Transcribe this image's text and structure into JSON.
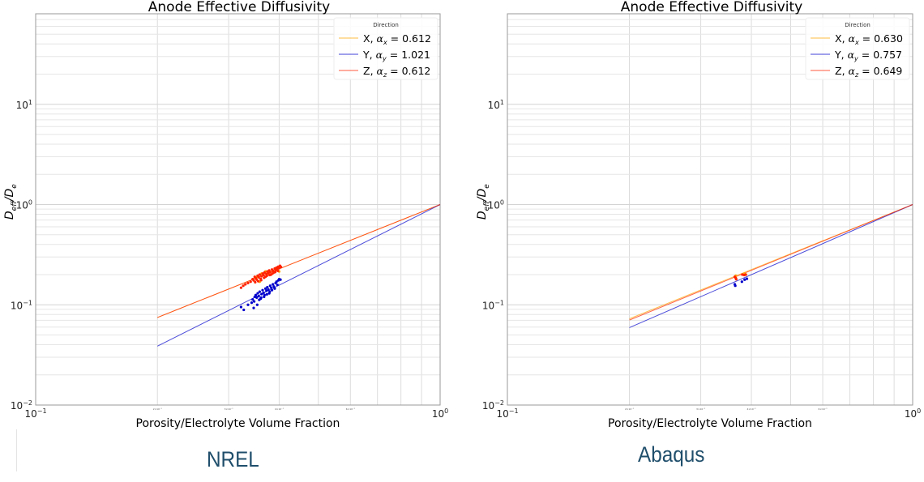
{
  "chart_data": [
    {
      "type": "scatter",
      "title": "Anode Effective Diffusivity",
      "xlabel": "Porosity/Electrolyte Volume Fraction",
      "ylabel": "D_eff/D_e",
      "xscale": "log",
      "yscale": "log",
      "xlim": [
        0.1,
        1.0
      ],
      "ylim": [
        0.01,
        80
      ],
      "grid": true,
      "x_major_ticks": [
        {
          "value": 0.1,
          "base": "10",
          "exp": "−1"
        },
        {
          "value": 1.0,
          "base": "10",
          "exp": "0"
        }
      ],
      "x_minor_tick_labels": [
        {
          "value": 0.2,
          "label": "2×10⁻¹"
        },
        {
          "value": 0.3,
          "label": "3×10⁻¹"
        },
        {
          "value": 0.4,
          "label": "4×10⁻¹"
        },
        {
          "value": 0.6,
          "label": "6×10⁻¹"
        }
      ],
      "y_major_ticks": [
        {
          "value": 0.01,
          "base": "10",
          "exp": "−2"
        },
        {
          "value": 0.1,
          "base": "10",
          "exp": "−1"
        },
        {
          "value": 1,
          "base": "10",
          "exp": "0"
        },
        {
          "value": 10,
          "base": "10",
          "exp": "1"
        }
      ],
      "legend": {
        "title": "Direction",
        "placement": "top-right"
      },
      "caption": "NREL",
      "series": [
        {
          "name": "X",
          "sub": "x",
          "alpha": "0.612",
          "exponent": 1.612,
          "color": "#ffa500",
          "fit_range": [
            0.2,
            1.0
          ],
          "points": [
            [
              0.352,
              0.19
            ],
            [
              0.362,
              0.205
            ],
            [
              0.37,
              0.215
            ],
            [
              0.378,
              0.2
            ],
            [
              0.385,
              0.22
            ],
            [
              0.395,
              0.235
            ],
            [
              0.4,
              0.215
            ],
            [
              0.345,
              0.18
            ],
            [
              0.358,
              0.17
            ]
          ]
        },
        {
          "name": "Y",
          "sub": "y",
          "alpha": "1.021",
          "exponent": 2.021,
          "color": "#0000cc",
          "fit_range": [
            0.2,
            1.0
          ],
          "points": [
            [
              0.322,
              0.095
            ],
            [
              0.327,
              0.089
            ],
            [
              0.335,
              0.1
            ],
            [
              0.342,
              0.105
            ],
            [
              0.344,
              0.113
            ],
            [
              0.346,
              0.093
            ],
            [
              0.348,
              0.12
            ],
            [
              0.35,
              0.125
            ],
            [
              0.352,
              0.118
            ],
            [
              0.354,
              0.13
            ],
            [
              0.356,
              0.122
            ],
            [
              0.358,
              0.135
            ],
            [
              0.36,
              0.115
            ],
            [
              0.362,
              0.128
            ],
            [
              0.364,
              0.14
            ],
            [
              0.366,
              0.132
            ],
            [
              0.368,
              0.125
            ],
            [
              0.37,
              0.145
            ],
            [
              0.372,
              0.138
            ],
            [
              0.374,
              0.15
            ],
            [
              0.376,
              0.142
            ],
            [
              0.378,
              0.13
            ],
            [
              0.38,
              0.155
            ],
            [
              0.382,
              0.148
            ],
            [
              0.384,
              0.14
            ],
            [
              0.386,
              0.16
            ],
            [
              0.388,
              0.152
            ],
            [
              0.39,
              0.145
            ],
            [
              0.392,
              0.165
            ],
            [
              0.394,
              0.17
            ],
            [
              0.396,
              0.158
            ],
            [
              0.398,
              0.175
            ],
            [
              0.4,
              0.18
            ],
            [
              0.403,
              0.178
            ],
            [
              0.347,
              0.108
            ],
            [
              0.353,
              0.1
            ],
            [
              0.357,
              0.112
            ],
            [
              0.361,
              0.118
            ],
            [
              0.367,
              0.12
            ],
            [
              0.373,
              0.127
            ],
            [
              0.379,
              0.135
            ]
          ]
        },
        {
          "name": "Z",
          "sub": "z",
          "alpha": "0.612",
          "exponent": 1.612,
          "color": "#ff2200",
          "fit_range": [
            0.2,
            1.0
          ],
          "points": [
            [
              0.322,
              0.148
            ],
            [
              0.326,
              0.155
            ],
            [
              0.33,
              0.16
            ],
            [
              0.335,
              0.165
            ],
            [
              0.34,
              0.17
            ],
            [
              0.344,
              0.18
            ],
            [
              0.346,
              0.175
            ],
            [
              0.348,
              0.19
            ],
            [
              0.35,
              0.185
            ],
            [
              0.352,
              0.178
            ],
            [
              0.354,
              0.195
            ],
            [
              0.356,
              0.188
            ],
            [
              0.358,
              0.2
            ],
            [
              0.36,
              0.182
            ],
            [
              0.362,
              0.193
            ],
            [
              0.364,
              0.205
            ],
            [
              0.366,
              0.198
            ],
            [
              0.368,
              0.21
            ],
            [
              0.37,
              0.19
            ],
            [
              0.372,
              0.203
            ],
            [
              0.374,
              0.215
            ],
            [
              0.376,
              0.207
            ],
            [
              0.378,
              0.22
            ],
            [
              0.38,
              0.212
            ],
            [
              0.382,
              0.2
            ],
            [
              0.384,
              0.225
            ],
            [
              0.386,
              0.218
            ],
            [
              0.388,
              0.21
            ],
            [
              0.39,
              0.23
            ],
            [
              0.392,
              0.222
            ],
            [
              0.394,
              0.235
            ],
            [
              0.396,
              0.228
            ],
            [
              0.398,
              0.24
            ],
            [
              0.4,
              0.232
            ],
            [
              0.402,
              0.245
            ],
            [
              0.404,
              0.238
            ],
            [
              0.349,
              0.168
            ],
            [
              0.355,
              0.172
            ],
            [
              0.361,
              0.176
            ],
            [
              0.367,
              0.186
            ],
            [
              0.373,
              0.195
            ],
            [
              0.379,
              0.198
            ],
            [
              0.385,
              0.205
            ],
            [
              0.391,
              0.212
            ],
            [
              0.397,
              0.218
            ]
          ]
        }
      ]
    },
    {
      "type": "scatter",
      "title": "Anode Effective Diffusivity",
      "xlabel": "Porosity/Electrolyte Volume Fraction",
      "ylabel": "D_eff/D_e",
      "xscale": "log",
      "yscale": "log",
      "xlim": [
        0.1,
        1.0
      ],
      "ylim": [
        0.01,
        80
      ],
      "grid": true,
      "x_major_ticks": [
        {
          "value": 0.1,
          "base": "10",
          "exp": "−1"
        },
        {
          "value": 1.0,
          "base": "10",
          "exp": "0"
        }
      ],
      "x_minor_tick_labels": [
        {
          "value": 0.2,
          "label": "2×10⁻¹"
        },
        {
          "value": 0.3,
          "label": "3×10⁻¹"
        },
        {
          "value": 0.4,
          "label": "4×10⁻¹"
        },
        {
          "value": 0.6,
          "label": "6×10⁻¹"
        }
      ],
      "y_major_ticks": [
        {
          "value": 0.01,
          "base": "10",
          "exp": "−2"
        },
        {
          "value": 0.1,
          "base": "10",
          "exp": "−1"
        },
        {
          "value": 1,
          "base": "10",
          "exp": "0"
        },
        {
          "value": 10,
          "base": "10",
          "exp": "1"
        }
      ],
      "legend": {
        "title": "Direction",
        "placement": "top-right"
      },
      "caption": "Abaqus",
      "series": [
        {
          "name": "X",
          "sub": "x",
          "alpha": "0.630",
          "exponent": 1.63,
          "color": "#ffa500",
          "fit_range": [
            0.2,
            1.0
          ],
          "points": [
            [
              0.366,
              0.195
            ],
            [
              0.385,
              0.205
            ],
            [
              0.388,
              0.2
            ]
          ]
        },
        {
          "name": "Y",
          "sub": "y",
          "alpha": "0.757",
          "exponent": 1.757,
          "color": "#0000cc",
          "fit_range": [
            0.2,
            1.0
          ],
          "points": [
            [
              0.364,
              0.16
            ],
            [
              0.365,
              0.155
            ],
            [
              0.379,
              0.17
            ],
            [
              0.385,
              0.178
            ],
            [
              0.39,
              0.182
            ]
          ]
        },
        {
          "name": "Z",
          "sub": "z",
          "alpha": "0.649",
          "exponent": 1.649,
          "color": "#ff2200",
          "fit_range": [
            0.2,
            1.0
          ],
          "points": [
            [
              0.364,
              0.19
            ],
            [
              0.366,
              0.185
            ],
            [
              0.367,
              0.18
            ],
            [
              0.38,
              0.2
            ],
            [
              0.384,
              0.198
            ],
            [
              0.387,
              0.2
            ]
          ]
        }
      ]
    }
  ]
}
